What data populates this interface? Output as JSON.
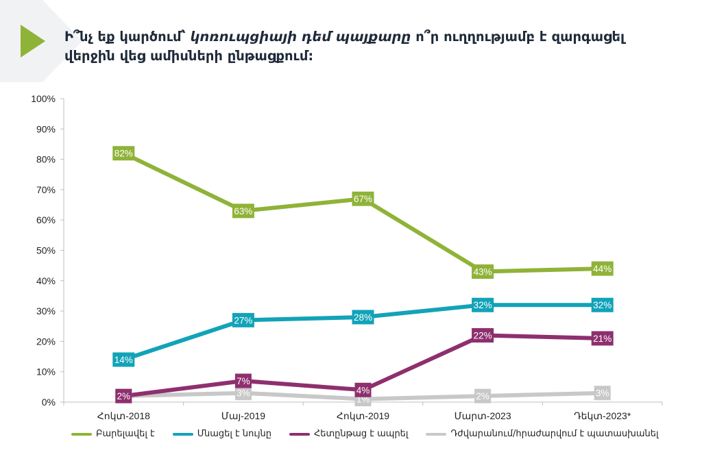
{
  "title": {
    "part1": "Ի՞նչ եք կարծում՝ ",
    "italic": "կոռուպցիայի դեմ պայքարը",
    "part2": " ո՞ր ուղղությամբ է զարգացել վերջին վեց ամիսների ընթացքում:"
  },
  "colors": {
    "accent": "#8fb338",
    "chevron_bg": "#eceef0"
  },
  "chart_data": {
    "type": "line",
    "categories": [
      "Հոկտ-2018",
      "Մայ-2019",
      "Հոկտ-2019",
      "Մարտ-2023",
      "Դեկտ-2023*"
    ],
    "ylim": [
      0,
      100
    ],
    "y_ticks": [
      "0%",
      "10%",
      "20%",
      "30%",
      "40%",
      "50%",
      "60%",
      "70%",
      "80%",
      "90%",
      "100%"
    ],
    "grid": false,
    "legend_position": "bottom",
    "series": [
      {
        "name": "Բարելավել է",
        "color": "#8fb338",
        "values": [
          82,
          63,
          67,
          43,
          44
        ],
        "labels": [
          "82%",
          "63%",
          "67%",
          "43%",
          "44%"
        ]
      },
      {
        "name": "Մնացել է նույնը",
        "color": "#12a3b8",
        "values": [
          14,
          27,
          28,
          32,
          32
        ],
        "labels": [
          "14%",
          "27%",
          "28%",
          "32%",
          "32%"
        ]
      },
      {
        "name": "Հետընթաց է ապրել",
        "color": "#8e2f6e",
        "values": [
          2,
          7,
          4,
          22,
          21
        ],
        "labels": [
          "2%",
          "7%",
          "4%",
          "22%",
          "21%"
        ]
      },
      {
        "name": "Դժվարանում/հրաժարվում է պատասխանել",
        "color": "#c8c8c8",
        "values": [
          2,
          3,
          1,
          2,
          3
        ],
        "labels": [
          "2%",
          "3%",
          "1%",
          "2%",
          "3%"
        ]
      }
    ]
  }
}
